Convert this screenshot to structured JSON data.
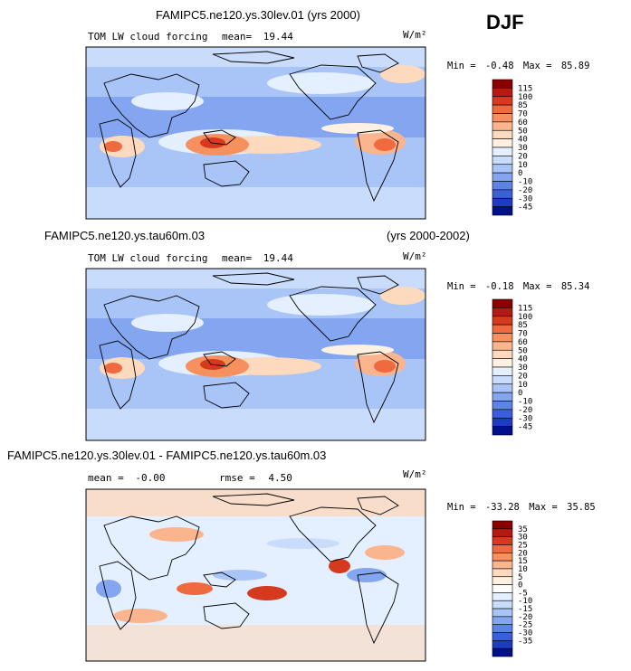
{
  "season": "DJF",
  "panels": [
    {
      "title": "FAMIPC5.ne120.ys.30lev.01 (yrs 2000)",
      "title_right": "",
      "variable": "TOM LW cloud forcing",
      "stat1_label": "mean=",
      "stat1_value": "19.44",
      "stat2_label": "",
      "stat2_value": "",
      "units": "W/m²",
      "min_label": "Min =",
      "min_value": "-0.48",
      "max_label": "Max =",
      "max_value": "85.89",
      "colorbar": {
        "colors": [
          "#8b0000",
          "#b51a10",
          "#d63a1e",
          "#ef6a3e",
          "#f7905f",
          "#fbb58e",
          "#fdd9bd",
          "#fff1e2",
          "#e4efff",
          "#c9dcfc",
          "#a9c4f7",
          "#84a5ef",
          "#5b84e5",
          "#3b5fd9",
          "#1d3bc4",
          "#000f8a"
        ],
        "labels": [
          "115",
          "100",
          "85",
          "70",
          "60",
          "50",
          "40",
          "30",
          "20",
          "10",
          "0",
          "-10",
          "-20",
          "-30",
          "-45"
        ]
      }
    },
    {
      "title": "FAMIPC5.ne120.ys.tau60m.03",
      "title_right": "(yrs 2000-2002)",
      "variable": "TOM LW cloud forcing",
      "stat1_label": "mean=",
      "stat1_value": "19.44",
      "stat2_label": "",
      "stat2_value": "",
      "units": "W/m²",
      "min_label": "Min =",
      "min_value": "-0.18",
      "max_label": "Max =",
      "max_value": "85.34",
      "colorbar": {
        "colors": [
          "#8b0000",
          "#b51a10",
          "#d63a1e",
          "#ef6a3e",
          "#f7905f",
          "#fbb58e",
          "#fdd9bd",
          "#fff1e2",
          "#e4efff",
          "#c9dcfc",
          "#a9c4f7",
          "#84a5ef",
          "#5b84e5",
          "#3b5fd9",
          "#1d3bc4",
          "#000f8a"
        ],
        "labels": [
          "115",
          "100",
          "85",
          "70",
          "60",
          "50",
          "40",
          "30",
          "20",
          "10",
          "0",
          "-10",
          "-20",
          "-30",
          "-45"
        ]
      }
    },
    {
      "title": "FAMIPC5.ne120.ys.30lev.01 - FAMIPC5.ne120.ys.tau60m.03",
      "title_right": "",
      "variable": "",
      "stat1_label": "mean =",
      "stat1_value": "-0.00",
      "stat2_label": "rmse =",
      "stat2_value": "4.50",
      "units": "W/m²",
      "min_label": "Min =",
      "min_value": "-33.28",
      "max_label": "Max =",
      "max_value": "35.85",
      "colorbar": {
        "colors": [
          "#8b0000",
          "#b51a10",
          "#d63a1e",
          "#ef6a3e",
          "#f7905f",
          "#fbb58e",
          "#fdd9bd",
          "#fff1e2",
          "#ffffff",
          "#e4efff",
          "#c9dcfc",
          "#a9c4f7",
          "#84a5ef",
          "#5b84e5",
          "#3b5fd9",
          "#1d3bc4",
          "#000f8a"
        ],
        "labels": [
          "35",
          "30",
          "25",
          "20",
          "15",
          "10",
          "5",
          "0",
          "-5",
          "-10",
          "-15",
          "-20",
          "-25",
          "-30",
          "-35"
        ]
      }
    }
  ],
  "chart_data": [
    {
      "type": "heatmap",
      "title": "FAMIPC5.ne120.ys.30lev.01 (yrs 2000)",
      "variable": "TOM LW cloud forcing",
      "units": "W/m²",
      "mean": 19.44,
      "min": -0.48,
      "max": 85.89,
      "levels": [
        -45,
        -30,
        -20,
        -10,
        0,
        10,
        20,
        30,
        40,
        50,
        60,
        70,
        85,
        100,
        115
      ]
    },
    {
      "type": "heatmap",
      "title": "FAMIPC5.ne120.ys.tau60m.03",
      "variable": "TOM LW cloud forcing",
      "units": "W/m²",
      "mean": 19.44,
      "min": -0.18,
      "max": 85.34,
      "levels": [
        -45,
        -30,
        -20,
        -10,
        0,
        10,
        20,
        30,
        40,
        50,
        60,
        70,
        85,
        100,
        115
      ]
    },
    {
      "type": "heatmap",
      "title": "FAMIPC5.ne120.ys.30lev.01 - FAMIPC5.ne120.ys.tau60m.03",
      "units": "W/m²",
      "mean": -0.0,
      "rmse": 4.5,
      "min": -33.28,
      "max": 35.85,
      "levels": [
        -35,
        -30,
        -25,
        -20,
        -15,
        -10,
        -5,
        0,
        5,
        10,
        15,
        20,
        25,
        30,
        35
      ]
    }
  ]
}
